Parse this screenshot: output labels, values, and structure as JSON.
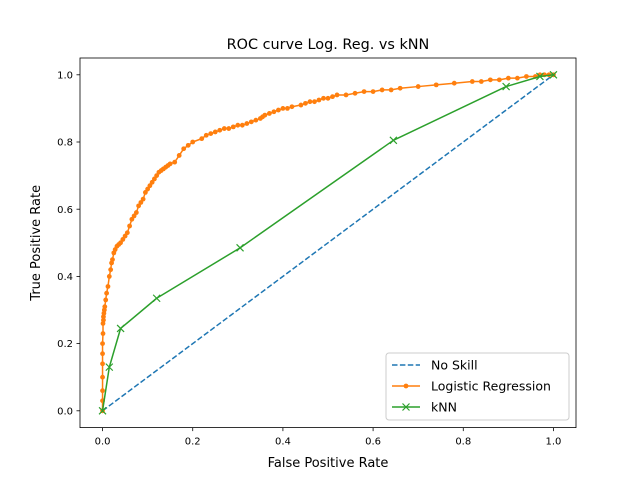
{
  "chart_data": {
    "type": "line",
    "title": "ROC curve Log. Reg. vs kNN",
    "xlabel": "False Positive Rate",
    "ylabel": "True Positive Rate",
    "xlim": [
      -0.05,
      1.05
    ],
    "ylim": [
      -0.05,
      1.05
    ],
    "xticks": [
      "0.0",
      "0.2",
      "0.4",
      "0.6",
      "0.8",
      "1.0"
    ],
    "yticks": [
      "0.0",
      "0.2",
      "0.4",
      "0.6",
      "0.8",
      "1.0"
    ],
    "grid": false,
    "legend_position": "lower-right",
    "series": [
      {
        "name": "No Skill",
        "style": "dashed",
        "marker": "none",
        "color": "#1f77b4",
        "x": [
          0,
          1
        ],
        "y": [
          0,
          1
        ]
      },
      {
        "name": "Logistic Regression",
        "style": "solid",
        "marker": "dot",
        "color": "#ff7f0e",
        "x": [
          0,
          0.0,
          0.0,
          0.0,
          0.0,
          0.0,
          0.0,
          0.001,
          0.001,
          0.002,
          0.002,
          0.003,
          0.004,
          0.005,
          0.007,
          0.009,
          0.012,
          0.015,
          0.018,
          0.02,
          0.022,
          0.025,
          0.028,
          0.032,
          0.036,
          0.04,
          0.045,
          0.05,
          0.055,
          0.06,
          0.065,
          0.07,
          0.075,
          0.08,
          0.085,
          0.09,
          0.095,
          0.1,
          0.105,
          0.11,
          0.115,
          0.12,
          0.125,
          0.13,
          0.135,
          0.14,
          0.145,
          0.15,
          0.16,
          0.17,
          0.18,
          0.19,
          0.2,
          0.22,
          0.23,
          0.24,
          0.25,
          0.26,
          0.27,
          0.28,
          0.29,
          0.3,
          0.31,
          0.32,
          0.33,
          0.34,
          0.35,
          0.355,
          0.36,
          0.37,
          0.38,
          0.39,
          0.4,
          0.41,
          0.42,
          0.44,
          0.45,
          0.46,
          0.47,
          0.48,
          0.49,
          0.5,
          0.51,
          0.52,
          0.54,
          0.56,
          0.58,
          0.6,
          0.62,
          0.64,
          0.66,
          0.7,
          0.74,
          0.78,
          0.82,
          0.84,
          0.86,
          0.88,
          0.9,
          0.92,
          0.94,
          0.96,
          0.97,
          0.98,
          0.99,
          1.0
        ],
        "y": [
          0,
          0.03,
          0.06,
          0.1,
          0.14,
          0.17,
          0.2,
          0.23,
          0.26,
          0.27,
          0.28,
          0.29,
          0.3,
          0.31,
          0.33,
          0.35,
          0.37,
          0.4,
          0.42,
          0.44,
          0.45,
          0.47,
          0.48,
          0.49,
          0.495,
          0.5,
          0.51,
          0.52,
          0.53,
          0.55,
          0.57,
          0.58,
          0.59,
          0.61,
          0.62,
          0.63,
          0.65,
          0.66,
          0.67,
          0.68,
          0.69,
          0.7,
          0.71,
          0.715,
          0.72,
          0.725,
          0.73,
          0.735,
          0.74,
          0.76,
          0.78,
          0.79,
          0.8,
          0.81,
          0.82,
          0.825,
          0.83,
          0.835,
          0.84,
          0.84,
          0.845,
          0.85,
          0.85,
          0.855,
          0.86,
          0.865,
          0.87,
          0.875,
          0.88,
          0.885,
          0.89,
          0.895,
          0.9,
          0.9,
          0.905,
          0.91,
          0.915,
          0.92,
          0.92,
          0.925,
          0.93,
          0.93,
          0.935,
          0.94,
          0.94,
          0.945,
          0.95,
          0.95,
          0.955,
          0.955,
          0.96,
          0.965,
          0.97,
          0.975,
          0.98,
          0.98,
          0.985,
          0.985,
          0.99,
          0.99,
          0.995,
          0.995,
          1.0,
          1.0,
          1.0,
          1.0
        ]
      },
      {
        "name": "kNN",
        "style": "solid",
        "marker": "x",
        "color": "#2ca02c",
        "x": [
          0,
          0.015,
          0.04,
          0.12,
          0.305,
          0.645,
          0.895,
          0.97,
          1.0
        ],
        "y": [
          0,
          0.13,
          0.245,
          0.335,
          0.485,
          0.805,
          0.965,
          0.995,
          1.0
        ]
      }
    ]
  }
}
